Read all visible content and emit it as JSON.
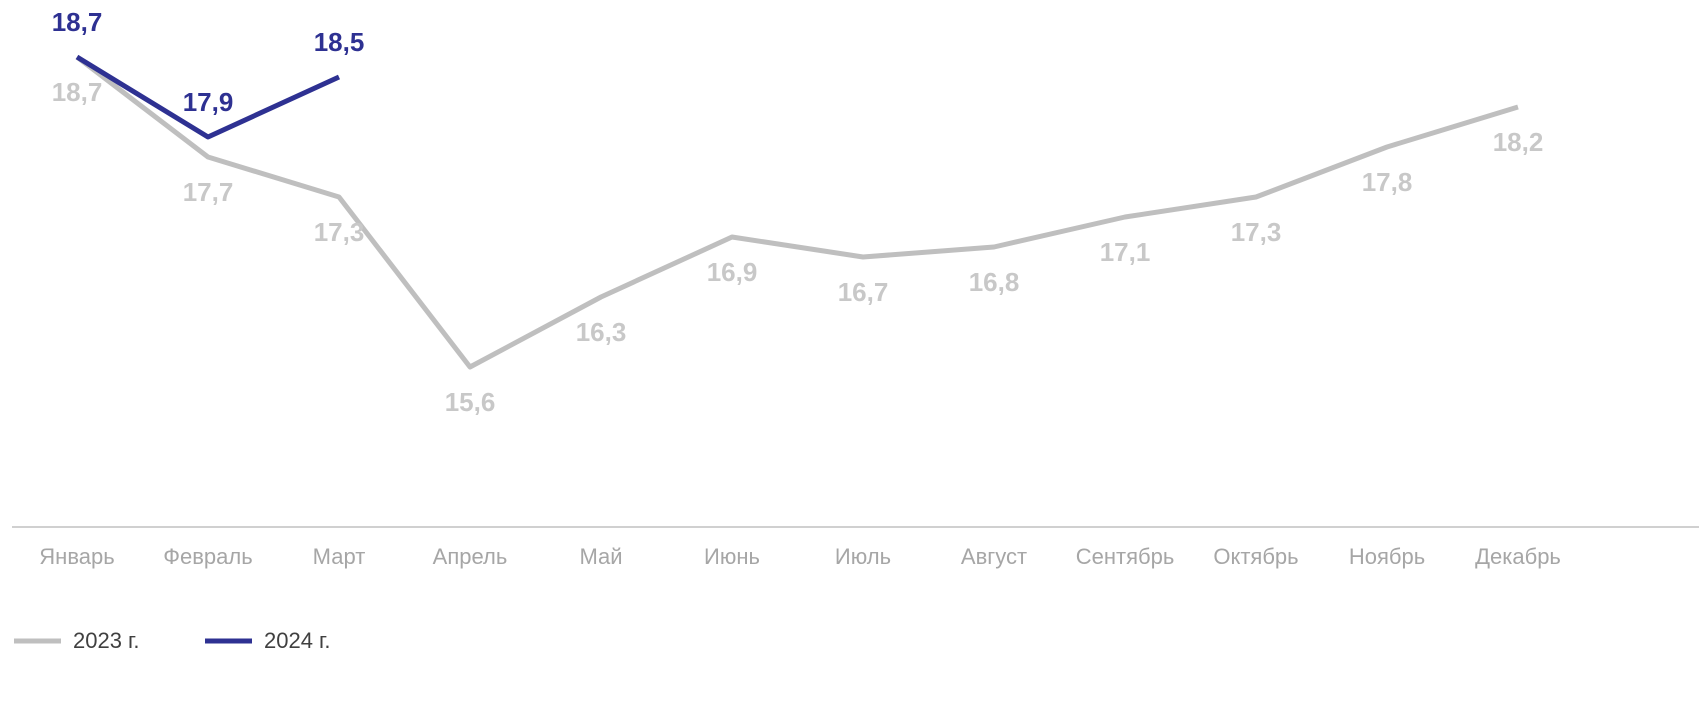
{
  "chart_data": {
    "type": "line",
    "categories": [
      "Январь",
      "Февраль",
      "Март",
      "Апрель",
      "Май",
      "Июнь",
      "Июль",
      "Август",
      "Сентябрь",
      "Октябрь",
      "Ноябрь",
      "Декабрь"
    ],
    "series": [
      {
        "name": "2023 г.",
        "color": "#bfbfbf",
        "values": [
          18.7,
          17.7,
          17.3,
          15.6,
          16.3,
          16.9,
          16.7,
          16.8,
          17.1,
          17.3,
          17.8,
          18.2
        ],
        "value_labels": [
          "18,7",
          "17,7",
          "17,3",
          "15,6",
          "16,3",
          "16,9",
          "16,7",
          "16,8",
          "17,1",
          "17,3",
          "17,8",
          "18,2"
        ]
      },
      {
        "name": "2024 г.",
        "color": "#2e3192",
        "values": [
          18.7,
          17.9,
          18.5,
          null,
          null,
          null,
          null,
          null,
          null,
          null,
          null,
          null
        ],
        "value_labels": [
          "18,7",
          "17,9",
          "18,5",
          null,
          null,
          null,
          null,
          null,
          null,
          null,
          null,
          null
        ]
      }
    ],
    "ylim": [
      14,
      19.27
    ],
    "legend": "bottom-left"
  }
}
